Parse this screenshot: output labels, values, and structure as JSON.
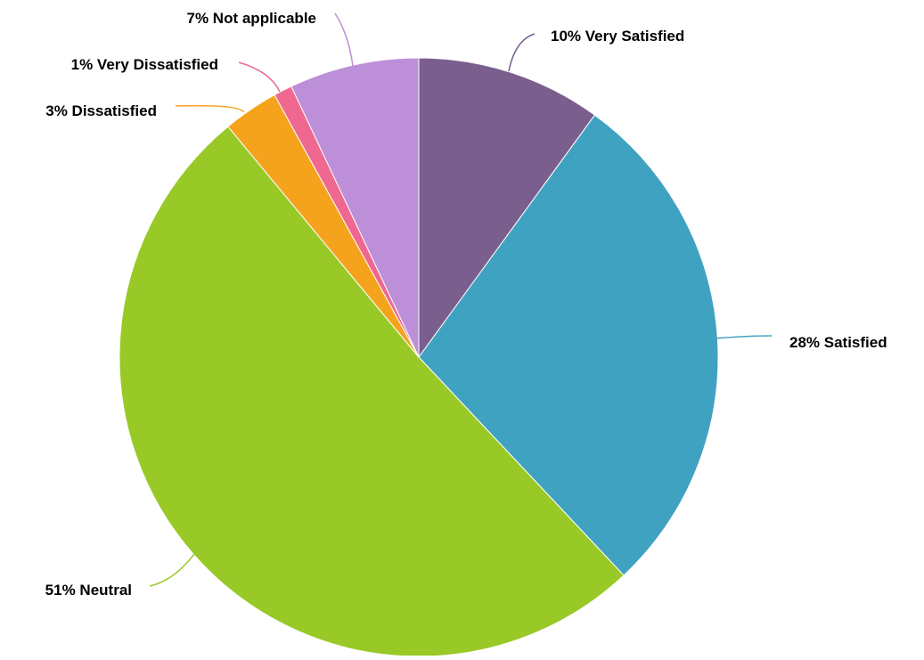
{
  "chart_data": {
    "type": "pie",
    "start_angle_deg": 0,
    "direction": "clockwise",
    "legend": "none",
    "slices": [
      {
        "label": "Very Satisfied",
        "value": 10,
        "display": "10% Very Satisfied",
        "color": "#7a5f8e"
      },
      {
        "label": "Satisfied",
        "value": 28,
        "display": "28% Satisfied",
        "color": "#40a2c1"
      },
      {
        "label": "Neutral",
        "value": 51,
        "display": "51% Neutral",
        "color": "#98c927"
      },
      {
        "label": "Dissatisfied",
        "value": 3,
        "display": "3% Dissatisfied",
        "color": "#f5a31d"
      },
      {
        "label": "Very Dissatisfied",
        "value": 1,
        "display": "1% Very Dissatisfied",
        "color": "#ef6890"
      },
      {
        "label": "Not applicable",
        "value": 7,
        "display": "7% Not applicable",
        "color": "#bd8fd9"
      }
    ]
  }
}
